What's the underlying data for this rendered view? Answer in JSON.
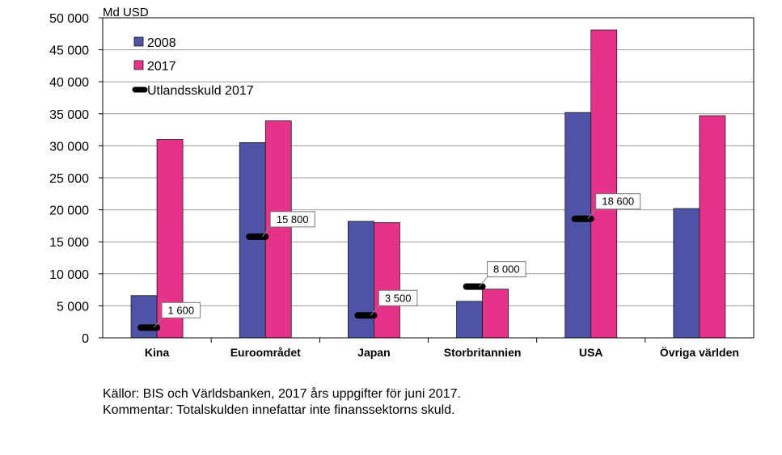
{
  "chart_data": {
    "type": "bar",
    "unit_label": "Md USD",
    "categories": [
      "Kina",
      "Euroområdet",
      "Japan",
      "Storbritannien",
      "USA",
      "Övriga världen"
    ],
    "series": [
      {
        "name": "2008",
        "color": "#4F53A5",
        "values": [
          6600,
          30500,
          18200,
          5700,
          35200,
          20200
        ]
      },
      {
        "name": "2017",
        "color": "#E7328A",
        "values": [
          31000,
          33900,
          18000,
          7600,
          48100,
          34700
        ]
      }
    ],
    "markers": {
      "name": "Utlandsskuld 2017",
      "color": "#000000",
      "values": [
        1600,
        15800,
        3500,
        8000,
        18600,
        null
      ],
      "labels": [
        "1 600",
        "15 800",
        "3 500",
        "8 000",
        "18 600",
        ""
      ]
    },
    "ylim": [
      0,
      50000
    ],
    "yticks": [
      0,
      5000,
      10000,
      15000,
      20000,
      25000,
      30000,
      35000,
      40000,
      45000,
      50000
    ],
    "ytick_labels": [
      "0",
      "5 000",
      "10 000",
      "15 000",
      "20 000",
      "25 000",
      "30 000",
      "35 000",
      "40 000",
      "45 000",
      "50 000"
    ],
    "grid": true,
    "legend_position": "top-left"
  },
  "notes": {
    "source": "Källor: BIS och Världsbanken, 2017 års uppgifter för juni 2017.",
    "comment": "Kommentar: Totalskulden innefattar inte finanssektorns skuld."
  }
}
